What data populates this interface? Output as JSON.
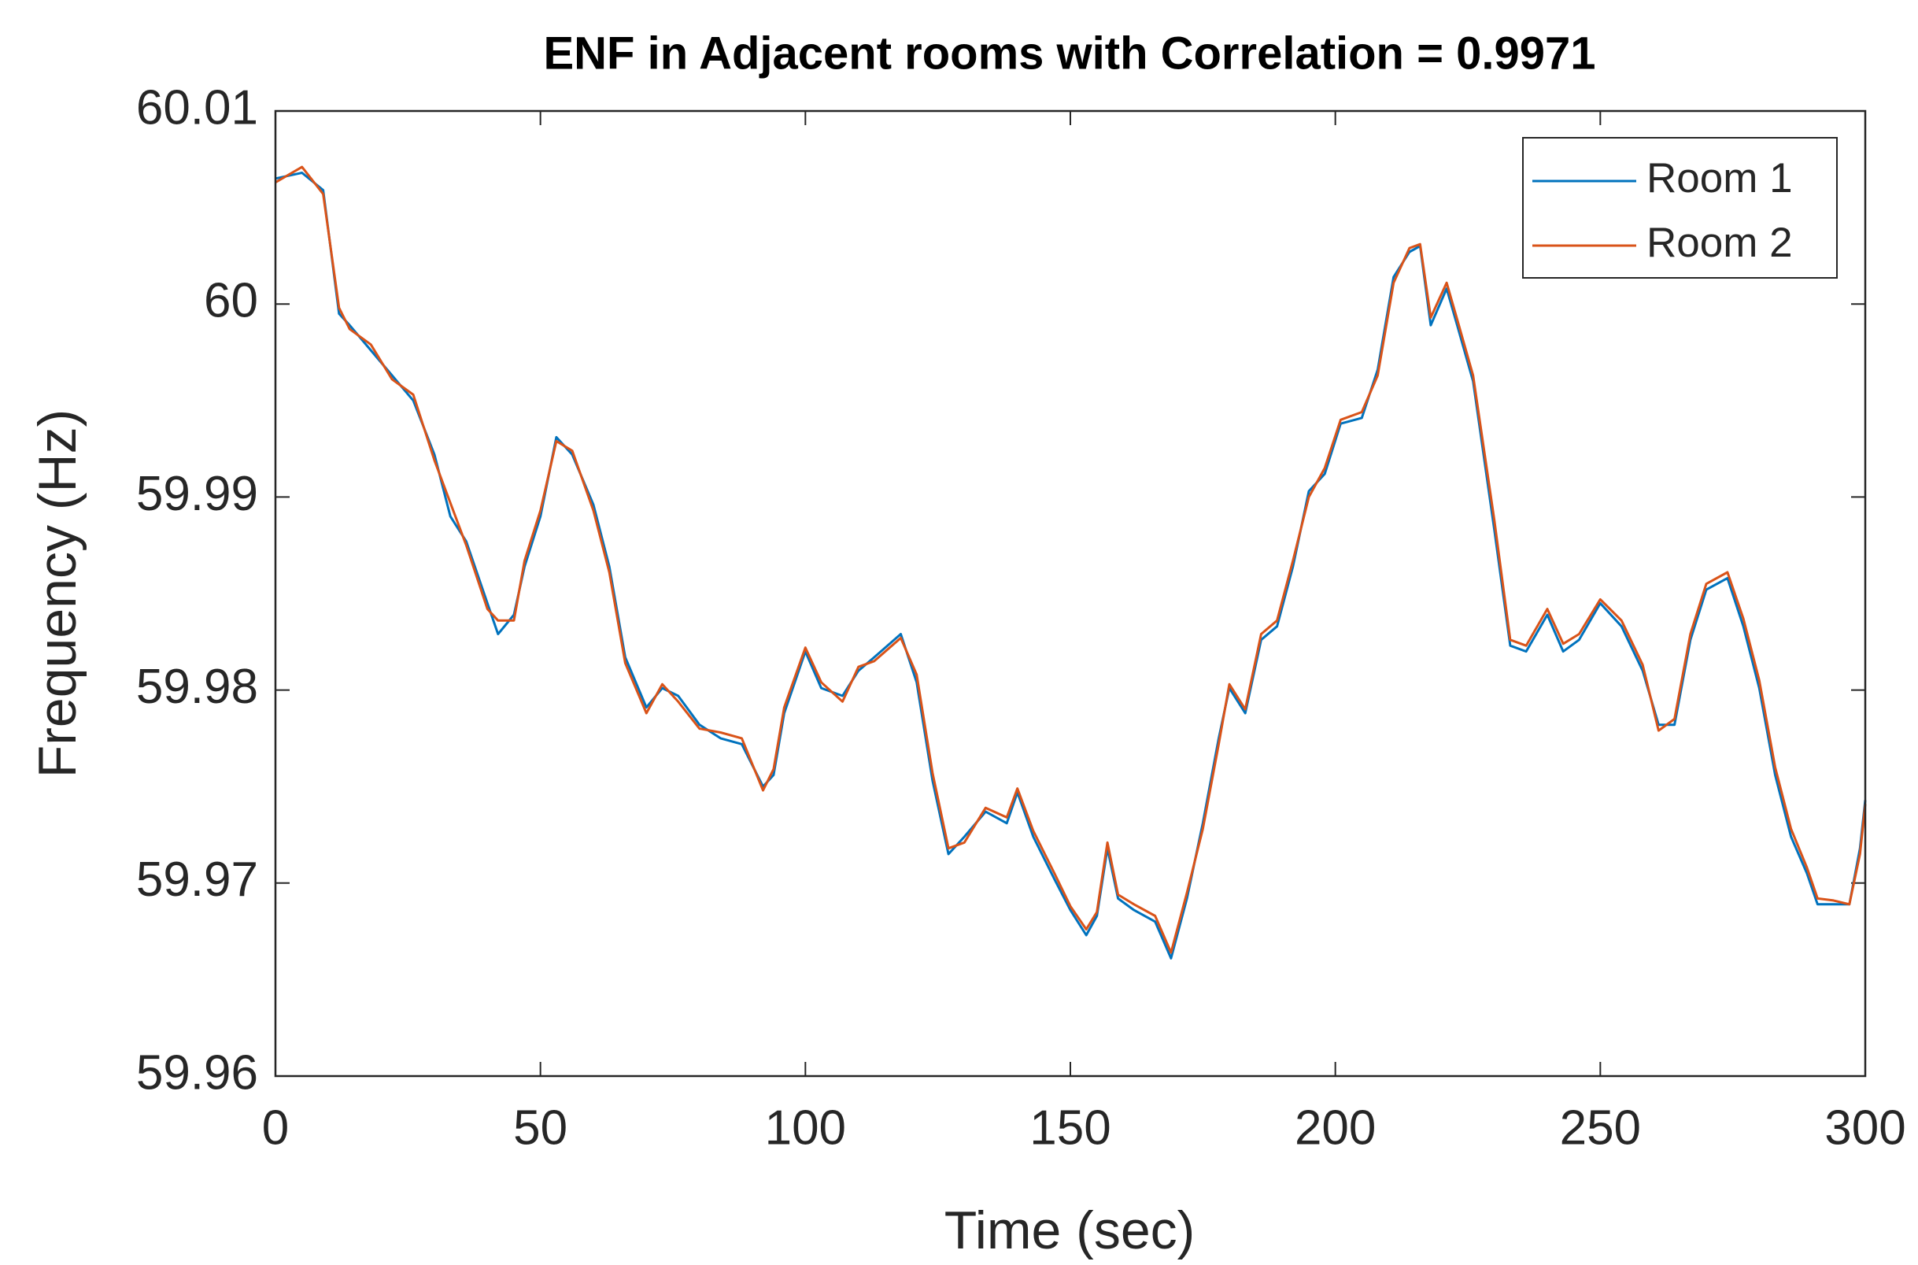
{
  "chart_data": {
    "type": "line",
    "title": "ENF in Adjacent rooms with Correlation = 0.9971",
    "xlabel": "Time (sec)",
    "ylabel": "Frequency (Hz)",
    "x": [
      0,
      5,
      9,
      12,
      14,
      18,
      22,
      26,
      30,
      33,
      36,
      40,
      42,
      45,
      47,
      50,
      53,
      56,
      60,
      63,
      66,
      70,
      73,
      76,
      80,
      84,
      88,
      92,
      94,
      96,
      100,
      103,
      107,
      110,
      113,
      118,
      121,
      124,
      127,
      130,
      134,
      138,
      140,
      143,
      147,
      150,
      153,
      155,
      157,
      159,
      162,
      166,
      169,
      172,
      175,
      178,
      180,
      183,
      186,
      189,
      192,
      195,
      198,
      201,
      205,
      208,
      211,
      214,
      216,
      218,
      221,
      223,
      226,
      230,
      233,
      236,
      240,
      243,
      246,
      250,
      254,
      258,
      261,
      264,
      267,
      270,
      274,
      277,
      280,
      283,
      286,
      289,
      291,
      294,
      297,
      299,
      300
    ],
    "series": [
      {
        "name": "Room 1",
        "color": "#0072bd",
        "values": [
          60.0065,
          60.0068,
          60.0059,
          59.9995,
          59.9989,
          59.9976,
          59.9963,
          59.995,
          59.9922,
          59.989,
          59.9877,
          59.9845,
          59.9829,
          59.9839,
          59.9864,
          59.989,
          59.9931,
          59.9922,
          59.9896,
          59.9864,
          59.9817,
          59.9791,
          59.9801,
          59.9797,
          59.9782,
          59.9775,
          59.9772,
          59.975,
          59.9756,
          59.9788,
          59.982,
          59.9801,
          59.9797,
          59.981,
          59.9817,
          59.9829,
          59.9804,
          59.9753,
          59.9715,
          59.9724,
          59.9737,
          59.9731,
          59.9747,
          59.9724,
          59.9702,
          59.9686,
          59.9673,
          59.9683,
          59.9718,
          59.9692,
          59.9686,
          59.968,
          59.9661,
          59.9692,
          59.9731,
          59.9775,
          59.9801,
          59.9788,
          59.9826,
          59.9833,
          59.9864,
          59.9903,
          59.9912,
          59.9938,
          59.9941,
          59.9966,
          60.0014,
          60.0027,
          60.003,
          59.9989,
          60.0008,
          59.9989,
          59.996,
          59.9883,
          59.9823,
          59.982,
          59.9839,
          59.982,
          59.9826,
          59.9845,
          59.9833,
          59.981,
          59.9782,
          59.9782,
          59.9826,
          59.9852,
          59.9858,
          59.9833,
          59.9801,
          59.9756,
          59.9724,
          59.9705,
          59.9689,
          59.9689,
          59.9689,
          59.9718,
          59.9743
        ]
      },
      {
        "name": "Room 2",
        "color": "#d95319",
        "values": [
          60.0063,
          60.0071,
          60.0057,
          59.9998,
          59.9987,
          59.9979,
          59.9961,
          59.9953,
          59.9919,
          59.9897,
          59.9875,
          59.9842,
          59.9836,
          59.9836,
          59.9867,
          59.9893,
          59.9929,
          59.9924,
          59.9893,
          59.9861,
          59.9814,
          59.9788,
          59.9803,
          59.9794,
          59.978,
          59.9778,
          59.9775,
          59.9748,
          59.9759,
          59.9791,
          59.9822,
          59.9804,
          59.9794,
          59.9812,
          59.9815,
          59.9827,
          59.9808,
          59.9757,
          59.9718,
          59.9721,
          59.9739,
          59.9734,
          59.9749,
          59.9727,
          59.9705,
          59.9688,
          59.9676,
          59.9685,
          59.9721,
          59.9694,
          59.9689,
          59.9683,
          59.9664,
          59.9695,
          59.9728,
          59.9772,
          59.9803,
          59.979,
          59.9829,
          59.9836,
          59.9867,
          59.99,
          59.9915,
          59.994,
          59.9944,
          59.9963,
          60.0011,
          60.0029,
          60.0031,
          59.9993,
          60.0011,
          59.9992,
          59.9963,
          59.9888,
          59.9826,
          59.9823,
          59.9842,
          59.9824,
          59.9829,
          59.9847,
          59.9836,
          59.9813,
          59.9779,
          59.9785,
          59.9829,
          59.9855,
          59.9861,
          59.9837,
          59.9805,
          59.976,
          59.9728,
          59.9708,
          59.9692,
          59.9691,
          59.9689,
          59.9715,
          59.9741
        ]
      }
    ],
    "xlim": [
      0,
      300
    ],
    "xticks": [
      0,
      50,
      100,
      150,
      200,
      250,
      300
    ],
    "ylim": [
      59.96,
      60.01
    ],
    "yticks": [
      59.96,
      59.97,
      59.98,
      59.99,
      60,
      60.01
    ],
    "legend": "upper right"
  }
}
